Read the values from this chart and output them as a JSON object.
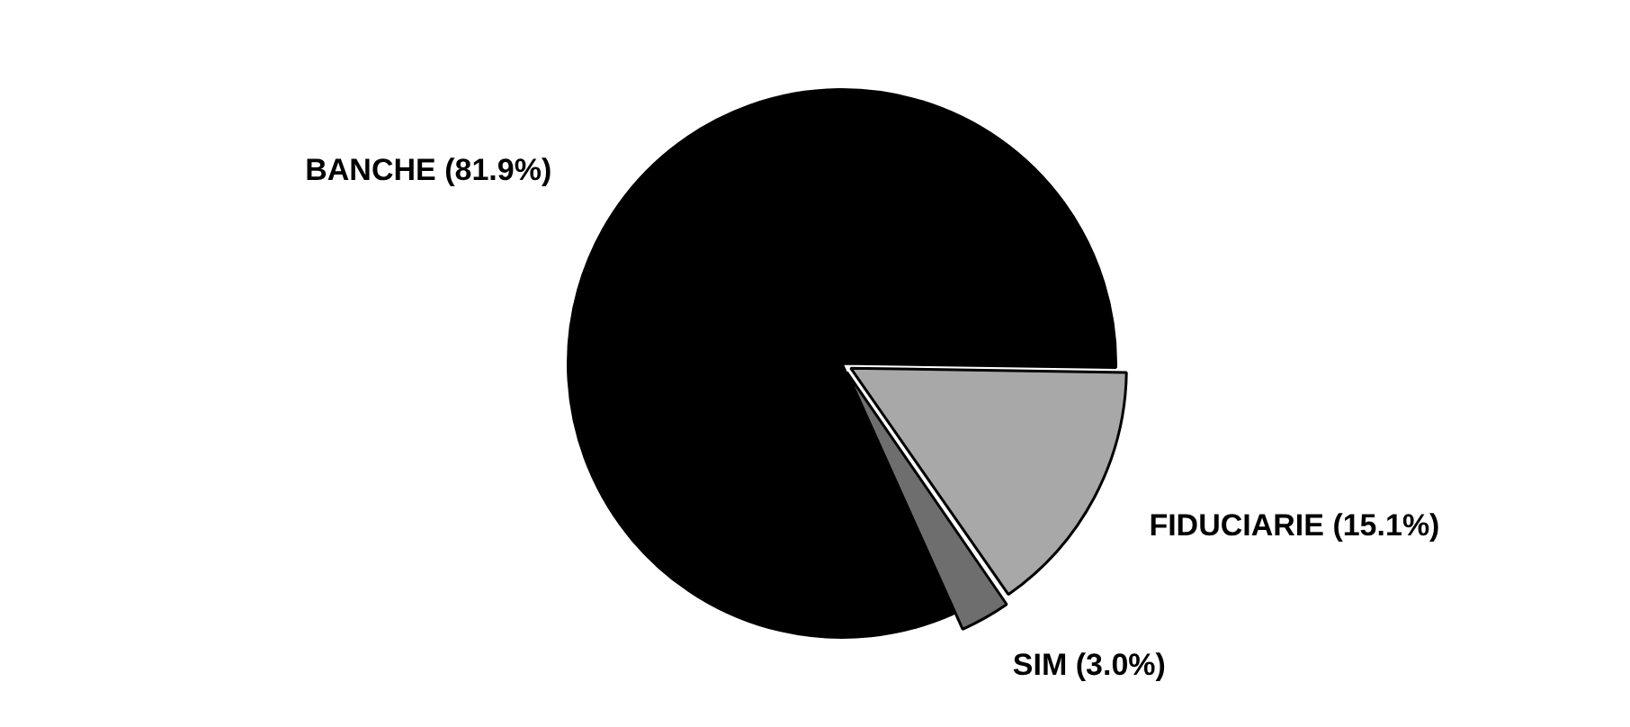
{
  "chart_data": {
    "type": "pie",
    "categories": [
      "BANCHE",
      "FIDUCIARIE",
      "SIM"
    ],
    "values": [
      81.9,
      15.1,
      3.0
    ],
    "value_labels": [
      "(81.9%)",
      "(15.1%)",
      "(3.0%)"
    ],
    "colors": [
      "#000000",
      "#a8a8a8",
      "#6e6e6e"
    ],
    "legend": false
  }
}
